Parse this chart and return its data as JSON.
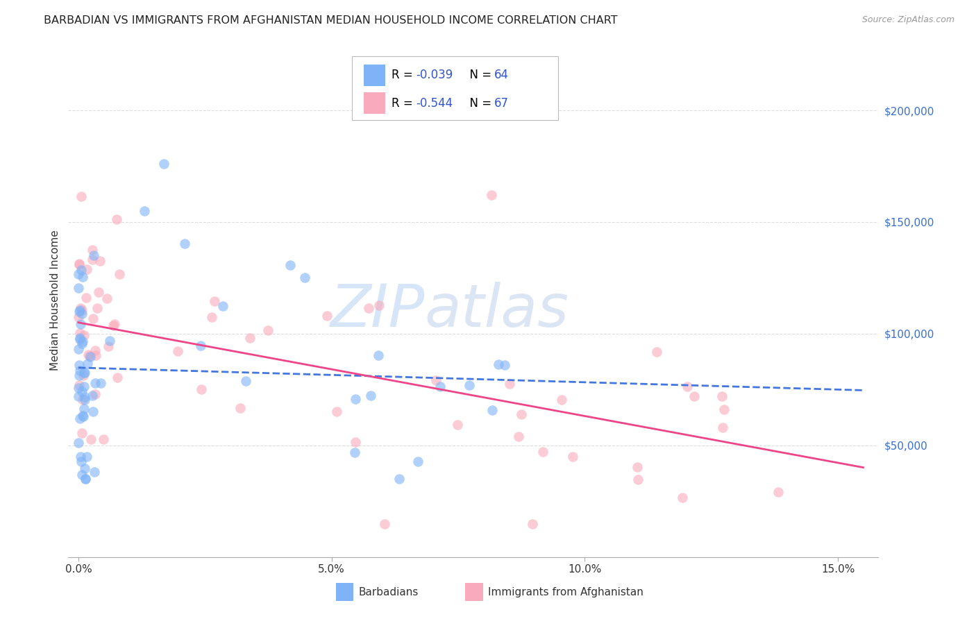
{
  "title": "BARBADIAN VS IMMIGRANTS FROM AFGHANISTAN MEDIAN HOUSEHOLD INCOME CORRELATION CHART",
  "source": "Source: ZipAtlas.com",
  "ylabel": "Median Household Income",
  "xlabel_ticks": [
    "0.0%",
    "5.0%",
    "10.0%",
    "15.0%"
  ],
  "xlabel_tick_vals": [
    0.0,
    0.05,
    0.1,
    0.15
  ],
  "ytick_labels": [
    "$50,000",
    "$100,000",
    "$150,000",
    "$200,000"
  ],
  "ytick_vals": [
    50000,
    100000,
    150000,
    200000
  ],
  "ylim": [
    0,
    230000
  ],
  "xlim": [
    -0.002,
    0.158
  ],
  "color_blue": "#7EB3F7",
  "color_pink": "#F9AABC",
  "color_blue_line": "#4477DD",
  "color_pink_line": "#EE4488",
  "watermark_zip": "ZIP",
  "watermark_atlas": "atlas",
  "R1": -0.039,
  "N1": 64,
  "R2": -0.544,
  "N2": 67,
  "background_color": "#FFFFFF",
  "grid_color": "#DDDDDD",
  "title_fontsize": 11.5,
  "source_fontsize": 9
}
